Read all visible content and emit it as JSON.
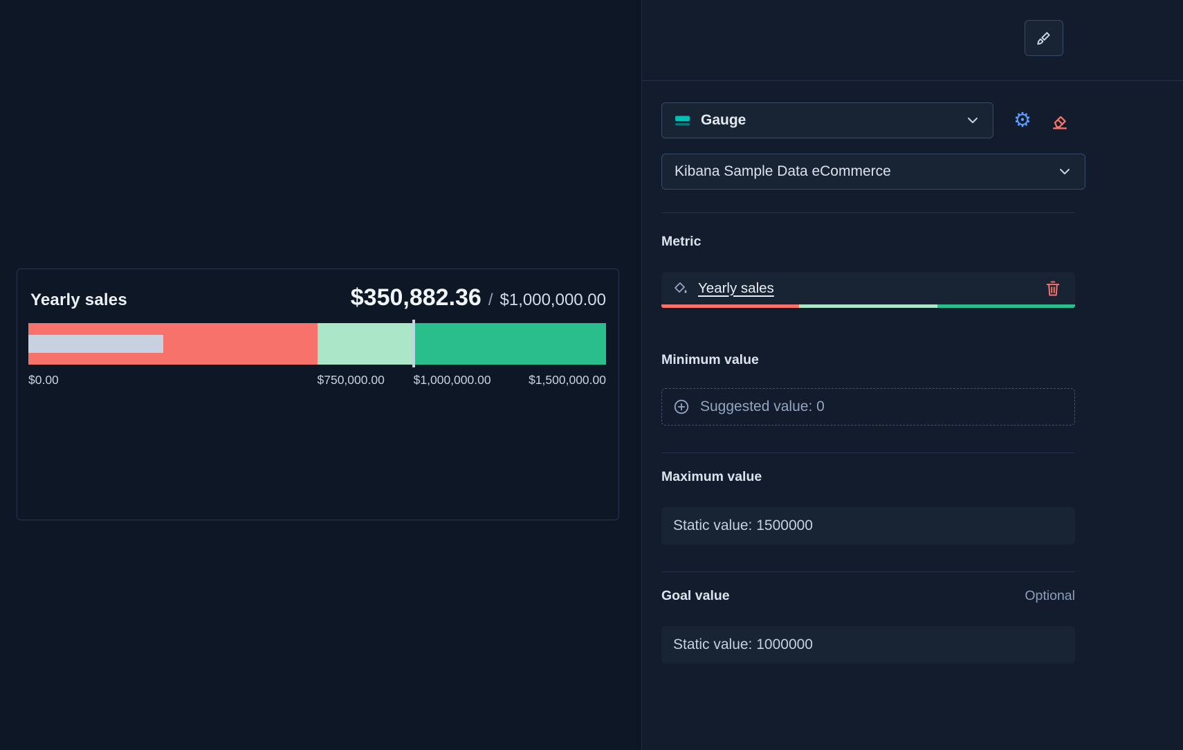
{
  "colors": {
    "band_low": "#f6726a",
    "band_mid": "#abe6c8",
    "band_high": "#2bbe8d",
    "value_bar": "#c7d1e0",
    "goal_marker": "#c7d1e0",
    "accent_teal": "#00bfb3",
    "accent_blue": "#5b9dff",
    "accent_red": "#f6726a"
  },
  "chart_data": {
    "type": "gauge",
    "title": "Yearly sales",
    "value": 350882.36,
    "value_label": "$350,882.36",
    "separator": "/",
    "goal_label": "$1,000,000.00",
    "min": 0,
    "max": 1500000,
    "goal": 1000000,
    "bands": [
      {
        "from": 0,
        "to": 750000,
        "color": "#f6726a"
      },
      {
        "from": 750000,
        "to": 1000000,
        "color": "#abe6c8"
      },
      {
        "from": 1000000,
        "to": 1500000,
        "color": "#2bbe8d"
      }
    ],
    "ticks": [
      {
        "label": "$0.00",
        "value": 0
      },
      {
        "label": "$750,000.00",
        "value": 750000
      },
      {
        "label": "$1,000,000.00",
        "value": 1000000
      },
      {
        "label": "$1,500,000.00",
        "value": 1500000
      }
    ]
  },
  "config_panel": {
    "chart_type_select": {
      "label": "Gauge"
    },
    "data_view_select": {
      "label": "Kibana Sample Data eCommerce"
    },
    "metric": {
      "section_label": "Metric",
      "field_label": "Yearly sales",
      "palette": [
        "#f6726a",
        "#abe6c8",
        "#2bbe8d"
      ]
    },
    "minimum": {
      "section_label": "Minimum value",
      "button_label": "Suggested value: 0"
    },
    "maximum": {
      "section_label": "Maximum value",
      "field_label": "Static value: 1500000"
    },
    "goal": {
      "section_label": "Goal value",
      "optional_label": "Optional",
      "field_label": "Static value: 1000000"
    }
  }
}
